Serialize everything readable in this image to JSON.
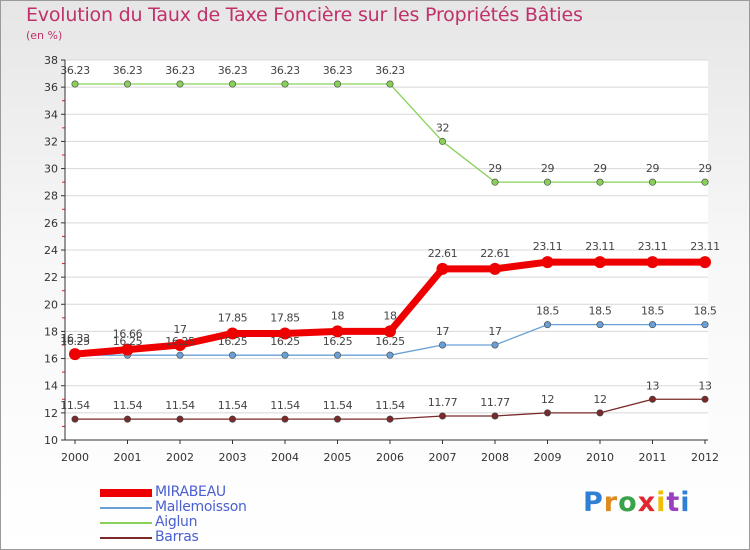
{
  "header": {
    "title": "Evolution du Taux de Taxe Foncière sur les Propriétés Bâties",
    "subtitle": "(en %)"
  },
  "chart_data": {
    "type": "line",
    "title": "Evolution du Taux de Taxe Foncière sur les Propriétés Bâties",
    "ylabel": "(en %)",
    "xlabel": "",
    "ylim": [
      10,
      38
    ],
    "yticks": [
      10,
      12,
      14,
      16,
      18,
      20,
      22,
      24,
      26,
      28,
      30,
      32,
      34,
      36,
      38
    ],
    "grid": "horizontal",
    "categories": [
      "2000",
      "2001",
      "2002",
      "2003",
      "2004",
      "2005",
      "2006",
      "2007",
      "2008",
      "2009",
      "2010",
      "2011",
      "2012"
    ],
    "series": [
      {
        "name": "MIRABEAU",
        "color": "#ee0000",
        "values": [
          16.33,
          16.66,
          17,
          17.85,
          17.85,
          18,
          18,
          22.61,
          22.61,
          23.11,
          23.11,
          23.11,
          23.11
        ]
      },
      {
        "name": "Mallemoisson",
        "color": "#6aa0d6",
        "values": [
          16.25,
          16.25,
          16.25,
          16.25,
          16.25,
          16.25,
          16.25,
          17,
          17,
          18.5,
          18.5,
          18.5,
          18.5
        ]
      },
      {
        "name": "Aiglun",
        "color": "#88d058",
        "values": [
          36.23,
          36.23,
          36.23,
          36.23,
          36.23,
          36.23,
          36.23,
          32,
          29,
          29,
          29,
          29,
          29
        ]
      },
      {
        "name": "Barras",
        "color": "#7a2a2a",
        "values": [
          11.54,
          11.54,
          11.54,
          11.54,
          11.54,
          11.54,
          11.54,
          11.77,
          11.77,
          12,
          12,
          13,
          13
        ]
      }
    ]
  },
  "legend": {
    "items": [
      {
        "label": "MIRABEAU",
        "color": "#ee0000"
      },
      {
        "label": "Mallemoisson",
        "color": "#6aa0d6"
      },
      {
        "label": "Aiglun",
        "color": "#88d058"
      },
      {
        "label": "Barras",
        "color": "#7a2a2a"
      }
    ]
  },
  "logo": {
    "text": "Proxiti",
    "colors": [
      "#2f7fd6",
      "#e08a1e",
      "#3aa24a",
      "#e0262e",
      "#f0c000",
      "#9a3fc0",
      "#2f7fd6"
    ]
  }
}
